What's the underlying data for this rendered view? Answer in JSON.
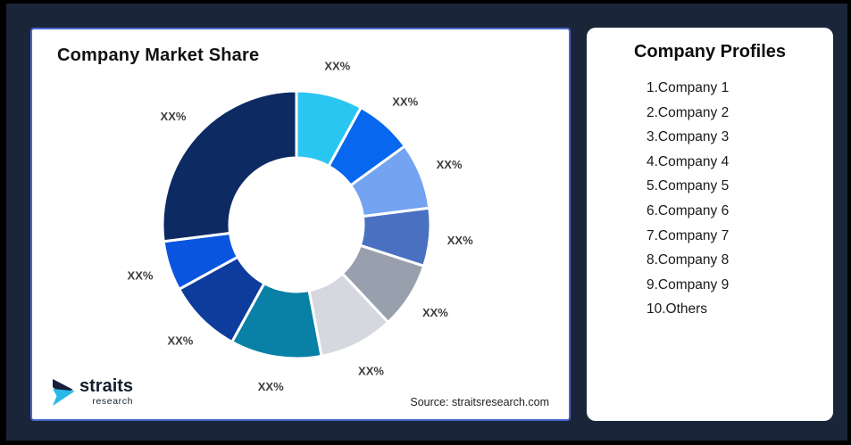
{
  "theme": {
    "frame_color": "#000000",
    "background": "#1B2539",
    "card_background": "#FFFFFF",
    "card_border": "#4A68CC",
    "title_color": "#121212",
    "slice_label_color": "#3D3D3D",
    "list_text_color": "#1A1A1A"
  },
  "left_card": {
    "title": "Company Market Share",
    "source": "Source: straitsresearch.com"
  },
  "logo": {
    "brand": "straits",
    "sub": "research",
    "icon_navy": "#16203C",
    "icon_cyan": "#29B9E8"
  },
  "profiles": {
    "title": "Company Profiles",
    "items": [
      "1.Company 1",
      "2.Company 2",
      "3.Company 3",
      "4.Company 4",
      "5.Company 5",
      "6.Company 6",
      "7.Company 7",
      "8.Company 8",
      "9.Company 9",
      "10.Others"
    ]
  },
  "chart_data": {
    "type": "pie",
    "subtype": "donut",
    "title": "Company Market Share",
    "categories": [
      "Company 1",
      "Company 2",
      "Company 3",
      "Company 4",
      "Company 5",
      "Company 6",
      "Company 7",
      "Company 8",
      "Company 9",
      "Others"
    ],
    "values": [
      8,
      7,
      8,
      7,
      8,
      9,
      11,
      9,
      6,
      27
    ],
    "labels": [
      "XX%",
      "XX%",
      "XX%",
      "XX%",
      "XX%",
      "XX%",
      "XX%",
      "XX%",
      "XX%",
      "XX%"
    ],
    "colors": [
      "#29C6F2",
      "#0767EE",
      "#74A3F2",
      "#4A70C2",
      "#99A0AD",
      "#D5D8DE",
      "#0981A6",
      "#0D3C9C",
      "#0A55E0",
      "#0E2A63"
    ],
    "start_angle_deg": 0,
    "direction": "clockwise",
    "inner_radius_ratio": 0.5,
    "outer_radius_px": 150,
    "inner_radius_px": 75,
    "label_radius_px": 184,
    "gap_color": "#FFFFFF",
    "legend": "none"
  }
}
